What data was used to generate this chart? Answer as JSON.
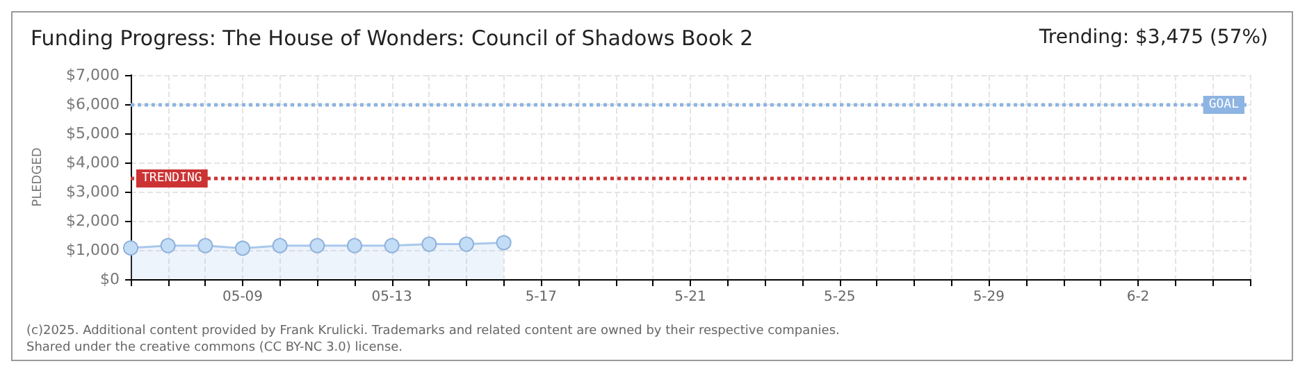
{
  "chart_data": {
    "type": "area",
    "title": "Funding Progress: The House of Wonders: Council of Shadows Book 2",
    "subtitle": "Trending: $3,475 (57%)",
    "ylabel": "PLEDGED",
    "annotations": [
      "(c)2025. Additional content provided by Frank Krulicki. Trademarks and related content are owned by their respective companies.",
      "Shared under the creative commons (CC BY-NC 3.0) license."
    ],
    "x": [
      "--05-06",
      "--05-07",
      "--05-08",
      "--05-09",
      "--05-10",
      "--05-11",
      "--05-12",
      "--05-13",
      "--05-14",
      "--05-15",
      "--05-16"
    ],
    "series": [
      {
        "color": "#a9c8ec",
        "values": [
          1070,
          1150,
          1150,
          1060,
          1150,
          1150,
          1150,
          1150,
          1200,
          1200,
          1250
        ]
      }
    ],
    "xlim": [
      "--05-06",
      "--06-05"
    ],
    "xticks": [
      {
        "value": "--05-06",
        "label": null
      },
      {
        "value": "--05-07",
        "label": null
      },
      {
        "value": "--05-08",
        "label": null
      },
      {
        "value": "--05-09",
        "label": "05-09"
      },
      {
        "value": "--05-10",
        "label": null
      },
      {
        "value": "--05-11",
        "label": null
      },
      {
        "value": "--05-12",
        "label": null
      },
      {
        "value": "--05-13",
        "label": "05-13"
      },
      {
        "value": "--05-14",
        "label": null
      },
      {
        "value": "--05-15",
        "label": null
      },
      {
        "value": "--05-16",
        "label": null
      },
      {
        "value": "--05-17",
        "label": "5-17"
      },
      {
        "value": "--05-18",
        "label": null
      },
      {
        "value": "--05-19",
        "label": null
      },
      {
        "value": "--05-20",
        "label": null
      },
      {
        "value": "--05-21",
        "label": "5-21"
      },
      {
        "value": "--05-22",
        "label": null
      },
      {
        "value": "--05-23",
        "label": null
      },
      {
        "value": "--05-24",
        "label": null
      },
      {
        "value": "--05-25",
        "label": "5-25"
      },
      {
        "value": "--05-26",
        "label": null
      },
      {
        "value": "--05-27",
        "label": null
      },
      {
        "value": "--05-28",
        "label": null
      },
      {
        "value": "--05-29",
        "label": "5-29"
      },
      {
        "value": "--05-30",
        "label": null
      },
      {
        "value": "--05-31",
        "label": null
      },
      {
        "value": "--06-01",
        "label": null
      },
      {
        "value": "--06-02",
        "label": "6-2"
      },
      {
        "value": "--06-03",
        "label": null
      },
      {
        "value": "--06-04",
        "label": null
      },
      {
        "value": "--06-05",
        "label": null
      }
    ],
    "ylim": [
      0,
      7000
    ],
    "yticks": [
      {
        "value": 0,
        "label": "$0"
      },
      {
        "value": 1000,
        "label": "$1,000"
      },
      {
        "value": 2000,
        "label": "$2,000"
      },
      {
        "value": 3000,
        "label": "$3,000"
      },
      {
        "value": 4000,
        "label": "$4,000"
      },
      {
        "value": 5000,
        "label": "$5,000"
      },
      {
        "value": 6000,
        "label": "$6,000"
      },
      {
        "value": 7000,
        "label": "$7,000"
      }
    ],
    "ref_lines": [
      {
        "axis": "y",
        "value": 6000,
        "label": "GOAL",
        "color": "#8db4e2",
        "line_style": "dotted"
      },
      {
        "axis": "y",
        "value": 3475,
        "label": "TRENDING",
        "color": "#cc3333",
        "line_style": "dotted"
      }
    ],
    "grid": true,
    "marker": "circle",
    "line_style": "solid"
  }
}
